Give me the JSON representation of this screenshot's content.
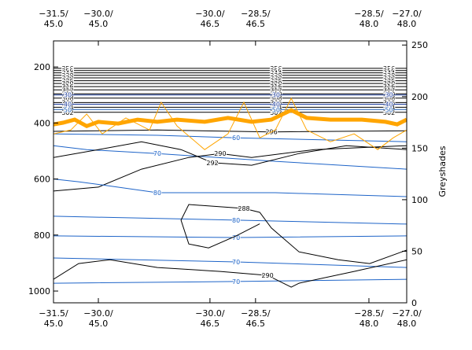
{
  "chart_data": {
    "type": "contour",
    "y2label": "Greyshades",
    "xlim": [
      0,
      100
    ],
    "xticks": [
      {
        "value": 0,
        "label": "−31.5/ 45.0"
      },
      {
        "value": 12.7,
        "label": "−30.0/ 45.0"
      },
      {
        "value": 44.3,
        "label": "−30.0/ 46.5"
      },
      {
        "value": 57.2,
        "label": "−28.5/ 46.5"
      },
      {
        "value": 89.3,
        "label": "−28.5/ 48.0"
      },
      {
        "value": 100,
        "label": "−27.0/ 48.0"
      }
    ],
    "ylim": [
      1042,
      107
    ],
    "yticks": [
      200,
      400,
      600,
      800,
      1000
    ],
    "y2lim": [
      0,
      254
    ],
    "y2ticks": [
      0,
      50,
      100,
      150,
      200,
      250
    ],
    "series": [
      {
        "name": "356",
        "color": "#000000",
        "x": [
          0,
          100
        ],
        "values": [
          205,
          205
        ]
      },
      {
        "name": "350",
        "color": "#000000",
        "x": [
          0,
          100
        ],
        "values": [
          213,
          213
        ]
      },
      {
        "name": "344",
        "color": "#000000",
        "x": [
          0,
          100
        ],
        "values": [
          221,
          221
        ]
      },
      {
        "name": "338",
        "color": "#000000",
        "x": [
          0,
          100
        ],
        "values": [
          230,
          230
        ]
      },
      {
        "name": "332",
        "color": "#000000",
        "x": [
          0,
          100
        ],
        "values": [
          239,
          239
        ]
      },
      {
        "name": "326",
        "color": "#000000",
        "x": [
          0,
          100
        ],
        "values": [
          249,
          249
        ]
      },
      {
        "name": "320",
        "color": "#000000",
        "x": [
          0,
          100
        ],
        "values": [
          259,
          259
        ]
      },
      {
        "name": "316",
        "color": "#000000",
        "x": [
          0,
          100
        ],
        "values": [
          270,
          270
        ]
      },
      {
        "name": "312",
        "color": "#000000",
        "x": [
          0,
          100
        ],
        "values": [
          282,
          282
        ]
      },
      {
        "name": "310",
        "color": "#000000",
        "x": [
          0,
          100
        ],
        "values": [
          296,
          296
        ]
      },
      {
        "name": "308",
        "color": "#000000",
        "x": [
          0,
          100
        ],
        "values": [
          311,
          311
        ]
      },
      {
        "name": "306",
        "color": "#000000",
        "x": [
          0,
          100
        ],
        "values": [
          327,
          327
        ]
      },
      {
        "name": "304",
        "color": "#000000",
        "x": [
          0,
          100
        ],
        "values": [
          344,
          344
        ]
      },
      {
        "name": "302",
        "color": "#000000",
        "x": [
          0,
          100
        ],
        "values": [
          362,
          362
        ]
      },
      {
        "name": "30",
        "color": "#1a3a9a",
        "x": [
          0,
          100
        ],
        "values": [
          300,
          300
        ]
      },
      {
        "name": "40",
        "color": "#1a3a9a",
        "x": [
          0,
          100
        ],
        "values": [
          333,
          333
        ]
      },
      {
        "name": "50",
        "color": "#1a5ab0",
        "x": [
          0,
          100
        ],
        "values": [
          352,
          352
        ]
      },
      {
        "name": "296",
        "color": "#000000",
        "x": [
          0,
          29.4,
          61.7,
          100
        ],
        "values": [
          430,
          425,
          432,
          428
        ]
      },
      {
        "name": "60",
        "color": "#1e64c8",
        "x": [
          0,
          29.4,
          51.7,
          100
        ],
        "values": [
          439,
          444,
          453,
          467
        ]
      },
      {
        "name": "70",
        "color": "#1e64c8",
        "x": [
          0,
          9.4,
          29.4,
          62.8,
          100
        ],
        "values": [
          481,
          495,
          509,
          537,
          565
        ]
      },
      {
        "name": "292",
        "color": "#000000",
        "x": [
          0,
          12.7,
          24.9,
          36.1,
          45,
          56.1,
          69.5,
          82.9,
          100
        ],
        "values": [
          523,
          495,
          467,
          495,
          542,
          551,
          509,
          481,
          495
        ]
      },
      {
        "name": "290",
        "color": "#000000",
        "x": [
          0,
          12.7,
          24.9,
          38.3,
          47.2,
          56.1,
          73.9,
          100
        ],
        "values": [
          643,
          629,
          565,
          523,
          509,
          523,
          495,
          481
        ]
      },
      {
        "name": "80",
        "color": "#1e64c8",
        "x": [
          0,
          7.1,
          13.8,
          29.4,
          62.8,
          100
        ],
        "values": [
          600,
          610,
          621,
          649,
          649,
          663
        ]
      },
      {
        "name": "80",
        "color": "#1e64c8",
        "x": [
          0,
          51.7,
          100
        ],
        "values": [
          733,
          747,
          761
        ]
      },
      {
        "name": "70",
        "color": "#1e64c8",
        "x": [
          0,
          51.7,
          100
        ],
        "values": [
          803,
          809,
          803
        ]
      },
      {
        "name": "70",
        "color": "#1e64c8",
        "x": [
          0,
          51.7,
          100
        ],
        "values": [
          882,
          896,
          916
        ]
      },
      {
        "name": "70",
        "color": "#1e64c8",
        "x": [
          0,
          51.7,
          100
        ],
        "values": [
          972,
          966,
          958
        ]
      },
      {
        "name": "288",
        "color": "#000000",
        "x": [
          100,
          89.5,
          80.6,
          69.5,
          61.7,
          58.4,
          53.9,
          38.3,
          36.1,
          38.3,
          43.9,
          51.7,
          58.4
        ],
        "values": [
          854,
          902,
          888,
          860,
          775,
          719,
          705,
          691,
          747,
          832,
          846,
          803,
          760
        ]
      },
      {
        "name": "290",
        "color": "#000000",
        "x": [
          0,
          7.1,
          16,
          29.4,
          47.2,
          60.6,
          67.3,
          69.5,
          85.1,
          100
        ],
        "values": [
          958,
          902,
          888,
          916,
          930,
          944,
          986,
          972,
          930,
          888
        ]
      },
      {
        "color": "#ffa500",
        "x": [
          0,
          4.9,
          9.4,
          13.8,
          20.5,
          27.2,
          30.5,
          35,
          42.8,
          49.4,
          53.9,
          58.4,
          62.8,
          67.3,
          71.7,
          78.4,
          85.1,
          91.8,
          96.2,
          100
        ],
        "values": [
          439,
          425,
          368,
          439,
          382,
          425,
          326,
          411,
          495,
          439,
          326,
          453,
          425,
          312,
          425,
          467,
          439,
          495,
          453,
          425
        ]
      },
      {
        "color": "#ffa500",
        "width": 5,
        "x": [
          0,
          2.7,
          6,
          9.4,
          12.7,
          18.3,
          23.8,
          29.4,
          35,
          42.8,
          49.4,
          56.1,
          61.7,
          67.3,
          71.7,
          78.4,
          87.3,
          94,
          97.3,
          100
        ],
        "values": [
          405,
          399,
          388,
          411,
          396,
          402,
          388,
          396,
          388,
          396,
          382,
          396,
          388,
          354,
          382,
          388,
          388,
          396,
          405,
          388
        ]
      }
    ]
  }
}
